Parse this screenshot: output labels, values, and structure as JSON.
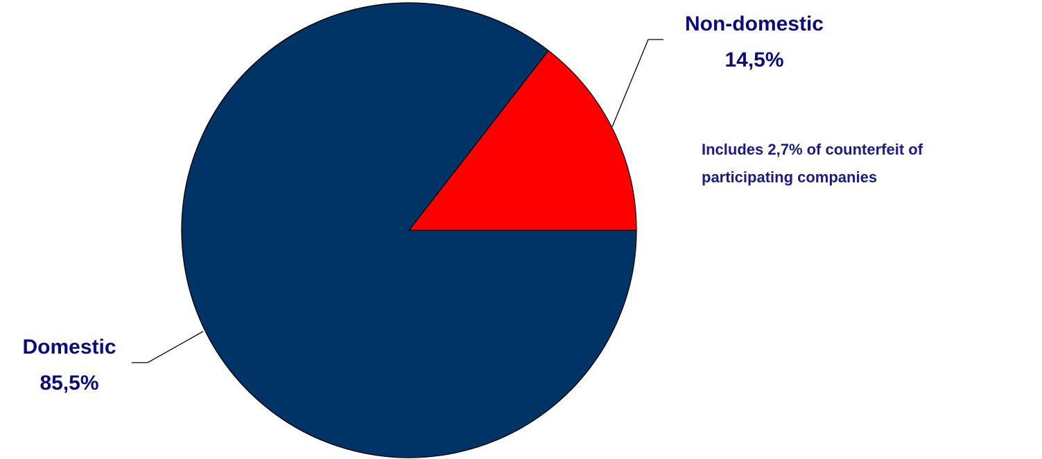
{
  "chart_data": {
    "type": "pie",
    "slices": [
      {
        "label": "Non-domestic",
        "value": 14.5,
        "display": "14,5%",
        "color": "#ff0000"
      },
      {
        "label": "Domestic",
        "value": 85.5,
        "display": "85,5%",
        "color": "#003366"
      }
    ],
    "annotation": "Includes  2,7% of counterfeit of\nparticipating companies",
    "legend": "none"
  }
}
